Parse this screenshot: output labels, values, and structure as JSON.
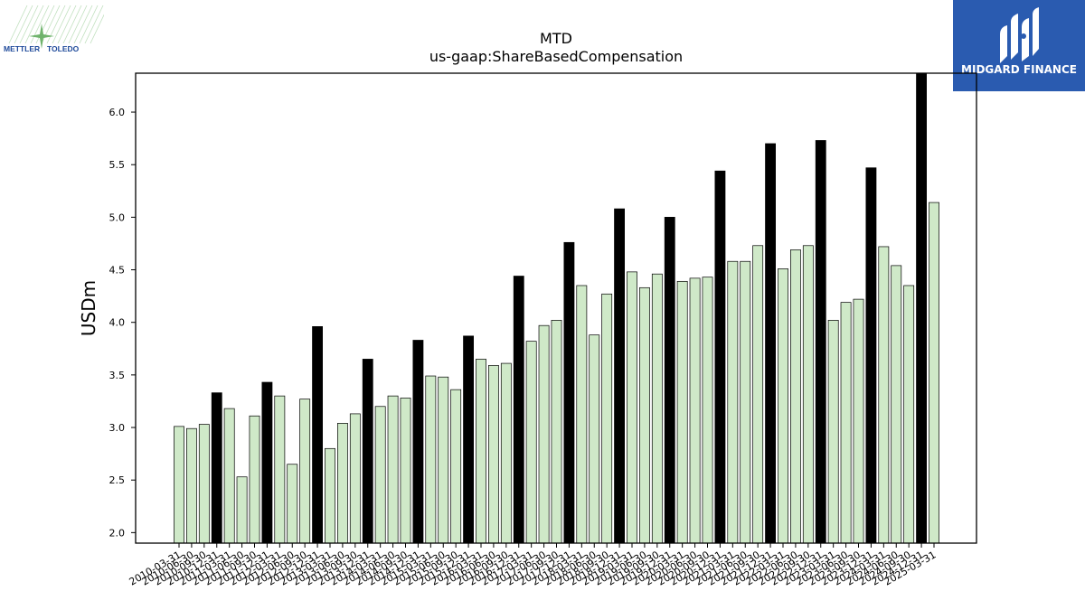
{
  "header": {
    "left_logo_text_1": "METTLER",
    "left_logo_text_2": "TOLEDO",
    "right_logo_text": "MIDGARD FINANCE"
  },
  "colors": {
    "q4_bar": "#000000",
    "regular_bar": "#cfe9c8",
    "bar_edge": "#000000",
    "brand_blue": "#2a5bb0",
    "mettler_green": "#7dbf7a",
    "mettler_text": "#1e4a9a"
  },
  "chart_data": {
    "type": "bar",
    "title": "MTD",
    "subtitle": "us-gaap:ShareBasedCompensation",
    "xlabel": "",
    "ylabel": "USDm",
    "ylim": [
      1.9,
      6.37
    ],
    "yticks": [
      "2.0",
      "2.5",
      "3.0",
      "3.5",
      "4.0",
      "4.5",
      "5.0",
      "5.5",
      "6.0"
    ],
    "grid": false,
    "highlight": "Q4 (December) bars drawn in black",
    "categories": [
      "2010-03-31",
      "2010-06-30",
      "2010-09-30",
      "2010-12-31",
      "2011-03-31",
      "2011-06-30",
      "2011-09-30",
      "2011-12-31",
      "2012-03-31",
      "2012-06-30",
      "2012-09-30",
      "2012-12-31",
      "2013-03-31",
      "2013-06-30",
      "2013-09-30",
      "2013-12-31",
      "2014-03-31",
      "2014-06-30",
      "2014-09-30",
      "2014-12-31",
      "2015-03-31",
      "2015-06-30",
      "2015-09-30",
      "2015-12-31",
      "2016-03-31",
      "2016-06-30",
      "2016-09-30",
      "2016-12-31",
      "2017-03-31",
      "2017-06-30",
      "2017-09-30",
      "2017-12-31",
      "2018-03-31",
      "2018-06-30",
      "2018-09-30",
      "2018-12-31",
      "2019-03-31",
      "2019-06-30",
      "2019-09-30",
      "2019-12-31",
      "2020-03-31",
      "2020-06-30",
      "2020-09-30",
      "2020-12-31",
      "2021-03-31",
      "2021-06-30",
      "2021-09-30",
      "2021-12-31",
      "2022-03-31",
      "2022-06-30",
      "2022-09-30",
      "2022-12-31",
      "2023-03-31",
      "2023-06-30",
      "2023-09-30",
      "2023-12-31",
      "2024-03-31",
      "2024-06-30",
      "2024-09-30",
      "2024-12-31",
      "2025-03-31"
    ],
    "tick_labels": [
      "2010-03-31",
      "2010-06-30",
      "2010-09-30",
      "2010-12-31",
      "2011-03-31",
      "2011-06-30",
      "2011-09-30",
      "2011-12-31",
      "2012-03-31",
      "2012-06-30",
      "2012-09-30",
      "2012-12-31",
      "2013-03-31",
      "2013-06-30",
      "2013-09-30",
      "2013-12-31",
      "2014-03-31",
      "2014-06-30",
      "2014-09-30",
      "2014-12-31",
      "2015-03-31",
      "2015-06-30",
      "2015-09-30",
      "2015-12-31",
      "2016-03-31",
      "2016-06-30",
      "2016-09-30",
      "2016-12-31",
      "2017-03-31",
      "2017-06-30",
      "2017-09-30",
      "2017-12-31",
      "2018-03-31",
      "2018-06-30",
      "2018-09-30",
      "2018-12-31",
      "2019-03-31",
      "2019-06-30",
      "2019-09-30",
      "2019-12-31",
      "2020-03-31",
      "2020-06-30",
      "2020-09-30",
      "2020-12-31",
      "2021-03-31",
      "2021-06-30",
      "2021-09-30",
      "2021-12-31",
      "2022-03-31",
      "2022-06-30",
      "2022-09-30",
      "2022-12-31",
      "2023-03-31",
      "2023-06-30",
      "2023-09-30",
      "2023-12-31",
      "2024-03-31",
      "2024-06-30",
      "2024-09-30",
      "2024-12-31",
      "2025-03-31"
    ],
    "values": [
      3.01,
      2.99,
      3.03,
      3.33,
      3.18,
      2.53,
      3.11,
      3.43,
      3.3,
      2.65,
      3.27,
      3.96,
      2.8,
      3.04,
      3.13,
      3.65,
      3.2,
      3.3,
      3.28,
      3.83,
      3.49,
      3.48,
      3.36,
      3.87,
      3.65,
      3.59,
      3.61,
      4.44,
      3.82,
      3.97,
      4.02,
      4.76,
      4.35,
      3.88,
      4.27,
      5.08,
      4.48,
      4.33,
      4.46,
      5.0,
      4.39,
      4.42,
      4.43,
      5.44,
      4.58,
      4.58,
      4.73,
      5.7,
      4.51,
      4.69,
      4.73,
      5.73,
      4.02,
      4.19,
      4.22,
      5.47,
      4.72,
      4.54,
      4.35,
      6.37,
      5.14
    ]
  }
}
